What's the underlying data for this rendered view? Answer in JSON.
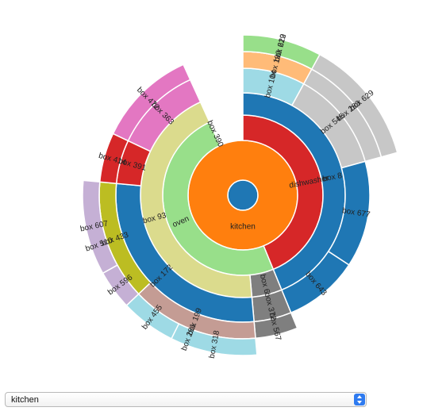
{
  "chart_data": {
    "type": "sunburst",
    "title": "",
    "root": {
      "name": "",
      "color": "#1f77b4",
      "children": [
        {
          "name": "kitchen",
          "color": "#ff7f0e",
          "children": [
            {
              "name": "dishwasher",
              "color": "#d62728",
              "children": [
                {
                  "name": "box 8",
                  "color": "#1f77b4",
                  "children": [
                    {
                      "name": "box 104",
                      "color": "#9edae5",
                      "children": [
                        {
                          "name": "box 192",
                          "color": "#ffbb78",
                          "children": [
                            {
                              "name": "box 229",
                              "color": "#98df8a",
                              "children": [
                                {
                                  "name": "box 612",
                                  "color": "#98df8a",
                                  "value": 1
                                }
                              ]
                            }
                          ]
                        }
                      ]
                    },
                    {
                      "name": "box 545",
                      "color": "#c7c7c7",
                      "children": [
                        {
                          "name": "box 283",
                          "color": "#c7c7c7",
                          "children": [
                            {
                              "name": "box 629",
                              "color": "#c7c7c7",
                              "value": 1.6
                            }
                          ]
                        }
                      ]
                    },
                    {
                      "name": "box 677",
                      "color": "#1f77b4",
                      "value": 1.7
                    },
                    {
                      "name": "box 643",
                      "color": "#1f77b4",
                      "value": 1.2
                    }
                  ]
                }
              ]
            },
            {
              "name": "oven",
              "color": "#98df8a",
              "children": [
                {
                  "name": "box 6",
                  "color": "#7f7f7f",
                  "children": [
                    {
                      "name": "box 372",
                      "color": "#7f7f7f",
                      "children": [
                        {
                          "name": "box 567",
                          "color": "#7f7f7f",
                          "value": 0.6
                        }
                      ]
                    }
                  ]
                },
                {
                  "name": "box 93",
                  "color": "#dbdb8d",
                  "children": [
                    {
                      "name": "box 172",
                      "color": "#1f77b4",
                      "children": [
                        {
                          "name": "box 199",
                          "color": "#c49c94",
                          "children": [
                            {
                              "name": "box 281",
                              "color": "#9edae5",
                              "children": [
                                {
                                  "name": "box 318",
                                  "color": "#9edae5",
                                  "value": 1.1
                                },
                                {
                                  "name": "box 455",
                                  "color": "#9edae5",
                                  "value": 0.7
                                }
                              ]
                            }
                          ]
                        },
                        {
                          "name": "box 433",
                          "color": "#bcbd22",
                          "children": [
                            {
                              "name": "box 510",
                              "color": "#c5b0d5",
                              "children": [
                                {
                                  "name": "box 596",
                                  "color": "#c5b0d5",
                                  "value": 0.5
                                },
                                {
                                  "name": "box 607",
                                  "color": "#c5b0d5",
                                  "value": 1.2
                                }
                              ]
                            }
                          ]
                        }
                      ]
                    },
                    {
                      "name": "box 391",
                      "color": "#d62728",
                      "children": [
                        {
                          "name": "box 414",
                          "color": "#d62728",
                          "value": 0.7
                        }
                      ]
                    },
                    {
                      "name": "box 363",
                      "color": "#e377c2",
                      "children": [
                        {
                          "name": "box 472",
                          "color": "#e377c2",
                          "value": 1.4
                        }
                      ]
                    }
                  ]
                }
              ]
            },
            {
              "name": "box 390",
              "color": "#98df8a",
              "value": 0.0001
            }
          ]
        }
      ]
    }
  },
  "controls": {
    "selected_room": "kitchen",
    "options": [
      "kitchen"
    ]
  },
  "icons": {
    "select_arrow": "select-updown-arrow-icon"
  }
}
